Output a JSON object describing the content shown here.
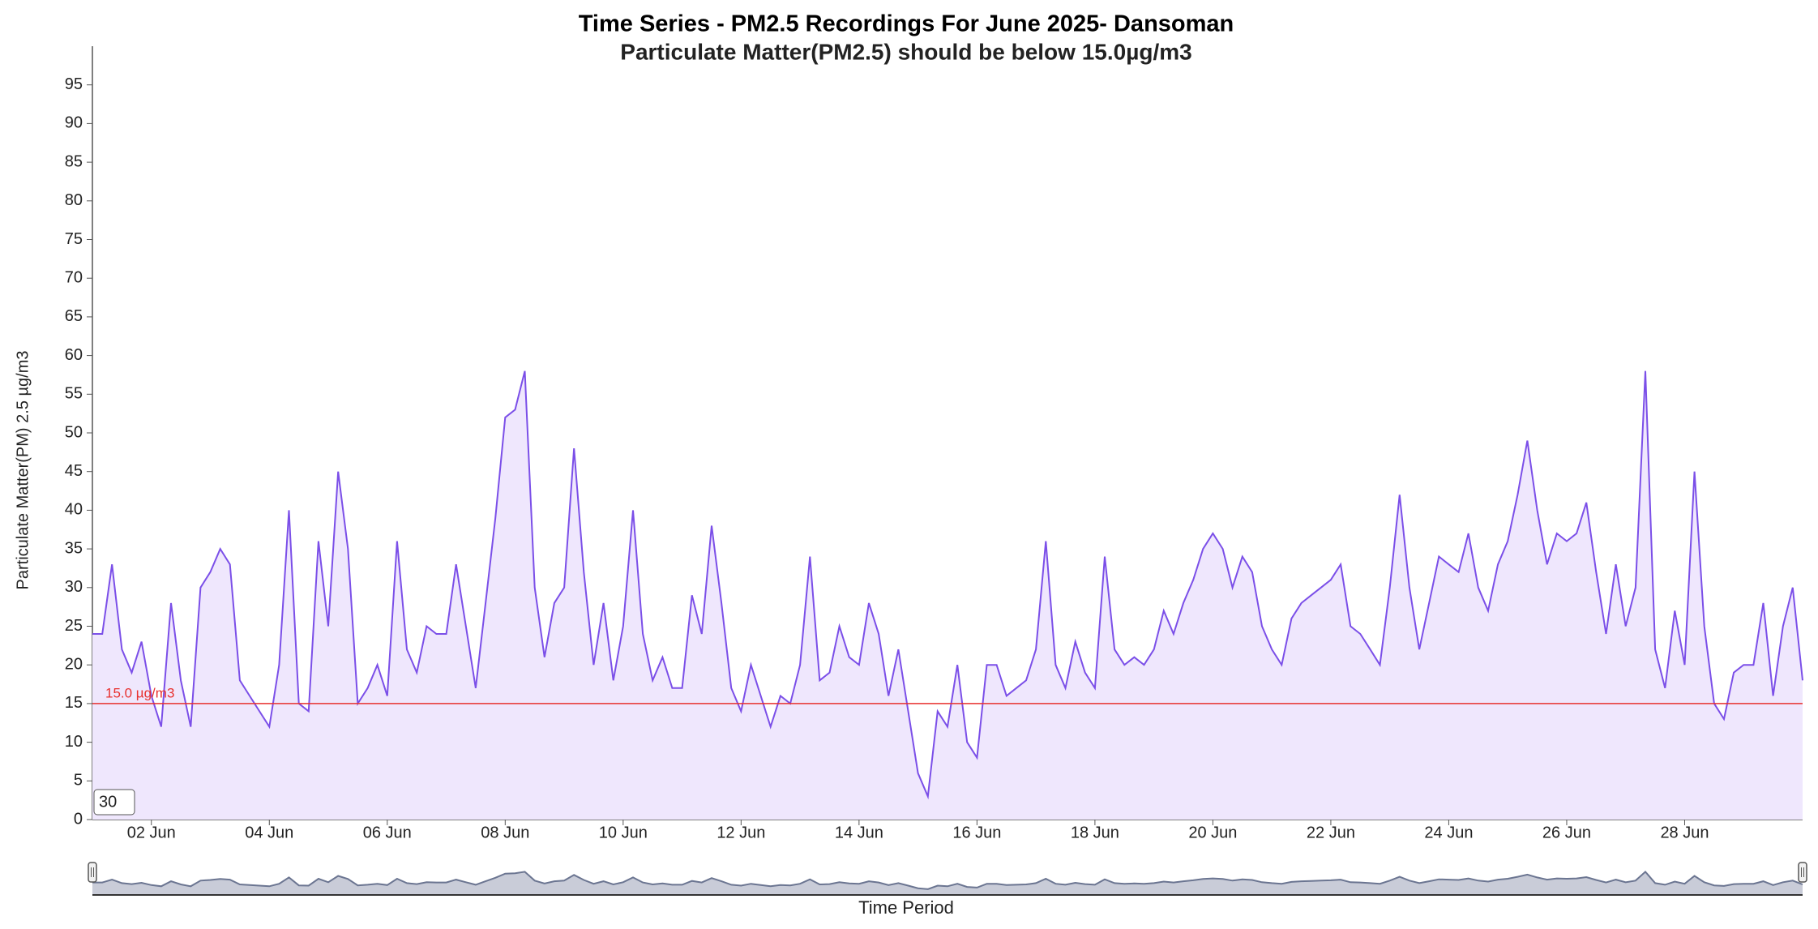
{
  "chart_data": {
    "type": "area",
    "title": "Time Series - PM2.5 Recordings For June 2025- Dansoman",
    "subtitle": "Particulate Matter(PM2.5) should be below 15.0µg/m3",
    "y_label": "Particulate Matter(PM) 2.5 µg/m3",
    "x_label": "Time Period",
    "color": "#7b4fe8",
    "fill": "#efe7fd",
    "range_input": 30,
    "threshold": {
      "value": 15,
      "label": "15.0 µg/m3",
      "color": "#e8312f"
    },
    "xlim": [
      1,
      30
    ],
    "ylim": [
      0,
      100
    ],
    "yticks": [
      0,
      5,
      10,
      15,
      20,
      25,
      30,
      35,
      40,
      45,
      50,
      55,
      60,
      65,
      70,
      75,
      80,
      85,
      90,
      95
    ],
    "xticks": [
      {
        "value": 2,
        "label": "02 Jun"
      },
      {
        "value": 4,
        "label": "04 Jun"
      },
      {
        "value": 6,
        "label": "06 Jun"
      },
      {
        "value": 8,
        "label": "08 Jun"
      },
      {
        "value": 10,
        "label": "10 Jun"
      },
      {
        "value": 12,
        "label": "12 Jun"
      },
      {
        "value": 14,
        "label": "14 Jun"
      },
      {
        "value": 16,
        "label": "16 Jun"
      },
      {
        "value": 18,
        "label": "18 Jun"
      },
      {
        "value": 20,
        "label": "20 Jun"
      },
      {
        "value": 22,
        "label": "22 Jun"
      },
      {
        "value": 24,
        "label": "24 Jun"
      },
      {
        "value": 26,
        "label": "26 Jun"
      },
      {
        "value": 28,
        "label": "28 Jun"
      }
    ],
    "x": [
      1,
      1.167,
      1.333,
      1.5,
      1.667,
      1.833,
      2,
      2.167,
      2.333,
      2.5,
      2.667,
      2.833,
      3,
      3.167,
      3.333,
      3.5,
      3.667,
      3.833,
      4,
      4.167,
      4.333,
      4.5,
      4.667,
      4.833,
      5,
      5.167,
      5.333,
      5.5,
      5.667,
      5.833,
      6,
      6.167,
      6.333,
      6.5,
      6.667,
      6.833,
      7,
      7.167,
      7.333,
      7.5,
      7.667,
      7.833,
      8,
      8.167,
      8.333,
      8.5,
      8.667,
      8.833,
      9,
      9.167,
      9.333,
      9.5,
      9.667,
      9.833,
      10,
      10.167,
      10.333,
      10.5,
      10.667,
      10.833,
      11,
      11.167,
      11.333,
      11.5,
      11.667,
      11.833,
      12,
      12.167,
      12.333,
      12.5,
      12.667,
      12.833,
      13,
      13.167,
      13.333,
      13.5,
      13.667,
      13.833,
      14,
      14.167,
      14.333,
      14.5,
      14.667,
      14.833,
      15,
      15.167,
      15.333,
      15.5,
      15.667,
      15.833,
      16,
      16.167,
      16.333,
      16.5,
      16.667,
      16.833,
      17,
      17.167,
      17.333,
      17.5,
      17.667,
      17.833,
      18,
      18.167,
      18.333,
      18.5,
      18.667,
      18.833,
      19,
      19.167,
      19.333,
      19.5,
      19.667,
      19.833,
      20,
      20.167,
      20.333,
      20.5,
      20.667,
      20.833,
      21,
      21.167,
      21.333,
      21.5,
      21.667,
      21.833,
      22,
      22.167,
      22.333,
      22.5,
      22.667,
      22.833,
      23,
      23.167,
      23.333,
      23.5,
      23.667,
      23.833,
      24,
      24.167,
      24.333,
      24.5,
      24.667,
      24.833,
      25,
      25.167,
      25.333,
      25.5,
      25.667,
      25.833,
      26,
      26.167,
      26.333,
      26.5,
      26.667,
      26.833,
      27,
      27.167,
      27.333,
      27.5,
      27.667,
      27.833,
      28,
      28.167,
      28.333,
      28.5,
      28.667,
      28.833,
      29,
      29.167,
      29.333,
      29.5,
      29.667,
      29.833,
      30
    ],
    "values": [
      24,
      24,
      33,
      22,
      19,
      23,
      16,
      12,
      28,
      18,
      12,
      30,
      32,
      35,
      33,
      18,
      16,
      14,
      12,
      20,
      40,
      15,
      14,
      36,
      25,
      45,
      35,
      15,
      17,
      20,
      16,
      36,
      22,
      19,
      25,
      24,
      24,
      33,
      25,
      17,
      28,
      39,
      52,
      53,
      58,
      30,
      21,
      28,
      30,
      48,
      32,
      20,
      28,
      18,
      25,
      40,
      24,
      18,
      21,
      17,
      17,
      29,
      24,
      38,
      28,
      17,
      14,
      20,
      16,
      12,
      16,
      15,
      20,
      34,
      18,
      19,
      25,
      21,
      20,
      28,
      24,
      16,
      22,
      14,
      6,
      3,
      14,
      12,
      20,
      10,
      8,
      20,
      20,
      16,
      17,
      18,
      22,
      36,
      20,
      17,
      23,
      19,
      17,
      34,
      22,
      20,
      21,
      20,
      22,
      27,
      24,
      28,
      31,
      35,
      37,
      35,
      30,
      34,
      32,
      25,
      22,
      20,
      26,
      28,
      29,
      30,
      31,
      33,
      25,
      24,
      22,
      20,
      30,
      42,
      30,
      22,
      28,
      34,
      33,
      32,
      37,
      30,
      27,
      33,
      36,
      42,
      49,
      40,
      33,
      37,
      36,
      37,
      41,
      32,
      24,
      33,
      25,
      30,
      58,
      22,
      17,
      27,
      20,
      45,
      25,
      15,
      13,
      19,
      20,
      20,
      28,
      16,
      25,
      30,
      18
    ]
  }
}
